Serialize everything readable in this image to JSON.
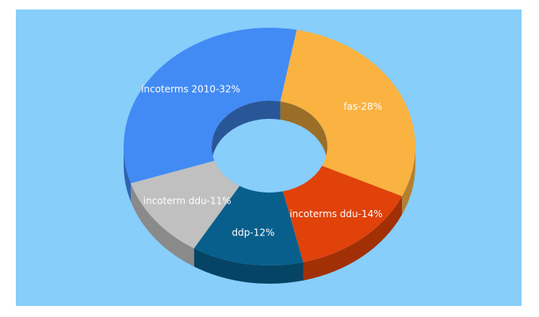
{
  "chart_data": {
    "type": "pie",
    "variant": "3d-donut",
    "title": "",
    "legend": "none",
    "slices": [
      {
        "label": "incoterms 2010-32%",
        "name": "incoterms 2010",
        "value": 32,
        "color": "#428bf4"
      },
      {
        "label": "fas-28%",
        "name": "fas",
        "value": 28,
        "color": "#fab241"
      },
      {
        "label": "incoterms ddu-14%",
        "name": "incoterms ddu",
        "value": 14,
        "color": "#e0420a"
      },
      {
        "label": "ddp-12%",
        "name": "ddp",
        "value": 12,
        "color": "#095f8c"
      },
      {
        "label": "incoterm ddu-11%",
        "name": "incoterm ddu",
        "value": 11,
        "color": "#c0c0c0"
      }
    ]
  },
  "colors": {
    "background": "#87cefa",
    "label_text": "#ffffff"
  }
}
